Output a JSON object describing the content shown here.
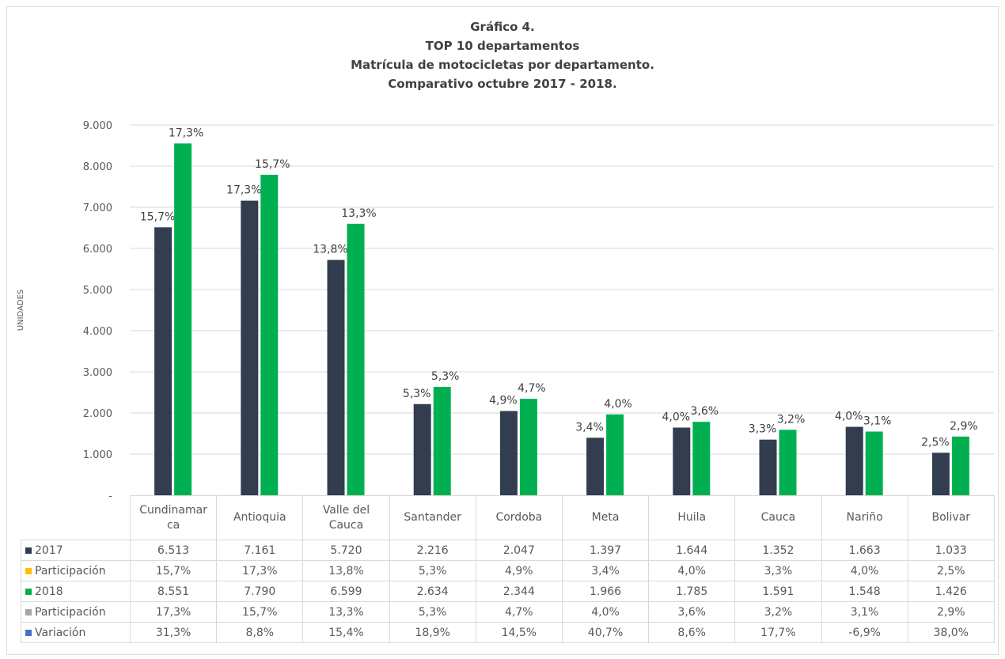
{
  "chart_data": {
    "type": "bar",
    "title": [
      "Gráfico 4.",
      "TOP 10 departamentos",
      "Matrícula de motocicletas por departamento.",
      "Comparativo octubre 2017 - 2018."
    ],
    "ylabel": "UNIDADES",
    "ylim": [
      0,
      9000
    ],
    "yticks": [
      0,
      1000,
      2000,
      3000,
      4000,
      5000,
      6000,
      7000,
      8000,
      9000
    ],
    "ytick_labels": [
      "-",
      "1.000",
      "2.000",
      "3.000",
      "4.000",
      "5.000",
      "6.000",
      "7.000",
      "8.000",
      "9.000"
    ],
    "grid": true,
    "categories": [
      "Cundinamarca",
      "Antioquia",
      "Valle del Cauca",
      "Santander",
      "Cordoba",
      "Meta",
      "Huila",
      "Cauca",
      "Nariño",
      "Bolivar"
    ],
    "category_labels": [
      [
        "Cundinamar",
        "ca"
      ],
      [
        "Antioquia"
      ],
      [
        "Valle del",
        "Cauca"
      ],
      [
        "Santander"
      ],
      [
        "Cordoba"
      ],
      [
        "Meta"
      ],
      [
        "Huila"
      ],
      [
        "Cauca"
      ],
      [
        "Nariño"
      ],
      [
        "Bolivar"
      ]
    ],
    "series": [
      {
        "name": "2017",
        "color": "#323e4f",
        "values": [
          6513,
          7161,
          5720,
          2216,
          2047,
          1397,
          1644,
          1352,
          1663,
          1033
        ],
        "value_labels": [
          "6.513",
          "7.161",
          "5.720",
          "2.216",
          "2.047",
          "1.397",
          "1.644",
          "1.352",
          "1.663",
          "1.033"
        ],
        "bar_labels": [
          "15,7%",
          "17,3%",
          "13,8%",
          "5,3%",
          "4,9%",
          "3,4%",
          "4,0%",
          "3,3%",
          "4,0%",
          "2,5%"
        ]
      },
      {
        "name": "2018",
        "color": "#00b050",
        "values": [
          8551,
          7790,
          6599,
          2634,
          2344,
          1966,
          1785,
          1591,
          1548,
          1426
        ],
        "value_labels": [
          "8.551",
          "7.790",
          "6.599",
          "2.634",
          "2.344",
          "1.966",
          "1.785",
          "1.591",
          "1.548",
          "1.426"
        ],
        "bar_labels": [
          "17,3%",
          "15,7%",
          "13,3%",
          "5,3%",
          "4,7%",
          "4,0%",
          "3,6%",
          "3,2%",
          "3,1%",
          "2,9%"
        ]
      }
    ],
    "table_rows": [
      {
        "label": "2017",
        "color": "#323e4f",
        "values": [
          "6.513",
          "7.161",
          "5.720",
          "2.216",
          "2.047",
          "1.397",
          "1.644",
          "1.352",
          "1.663",
          "1.033"
        ]
      },
      {
        "label": "Participación",
        "color": "#ffc000",
        "values": [
          "15,7%",
          "17,3%",
          "13,8%",
          "5,3%",
          "4,9%",
          "3,4%",
          "4,0%",
          "3,3%",
          "4,0%",
          "2,5%"
        ]
      },
      {
        "label": "2018",
        "color": "#00b050",
        "values": [
          "8.551",
          "7.790",
          "6.599",
          "2.634",
          "2.344",
          "1.966",
          "1.785",
          "1.591",
          "1.548",
          "1.426"
        ]
      },
      {
        "label": "Participación",
        "color": "#a5a5a5",
        "values": [
          "17,3%",
          "15,7%",
          "13,3%",
          "5,3%",
          "4,7%",
          "4,0%",
          "3,6%",
          "3,2%",
          "3,1%",
          "2,9%"
        ]
      },
      {
        "label": "Variación",
        "color": "#4472c4",
        "values": [
          "31,3%",
          "8,8%",
          "15,4%",
          "18,9%",
          "14,5%",
          "40,7%",
          "8,6%",
          "17,7%",
          "-6,9%",
          "38,0%"
        ]
      }
    ]
  }
}
